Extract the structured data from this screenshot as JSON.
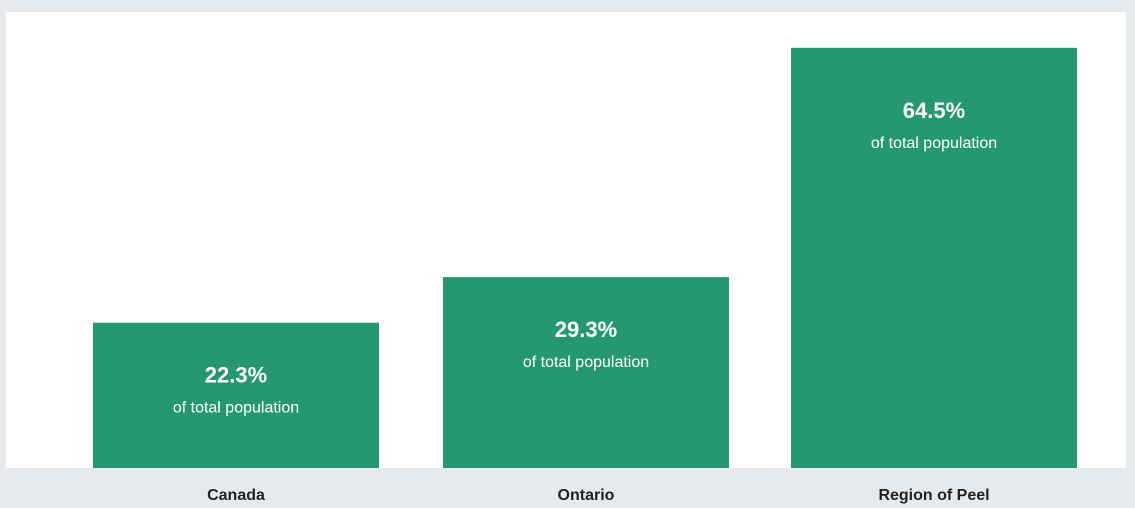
{
  "colors": {
    "bar": "#259873",
    "panel": "#ffffff",
    "background": "#e6eaed",
    "bar_text": "#ffffff",
    "category_text": "#222222"
  },
  "chart_data": {
    "type": "bar",
    "categories": [
      "Canada",
      "Ontario",
      "Region of Peel"
    ],
    "values": [
      22.3,
      29.3,
      64.5
    ],
    "value_labels": [
      "22.3%",
      "29.3%",
      "64.5%"
    ],
    "bar_sublabel": "of total population",
    "ylim": [
      0,
      70
    ],
    "grid": false,
    "legend": "none",
    "title": "",
    "xlabel": "",
    "ylabel": ""
  }
}
